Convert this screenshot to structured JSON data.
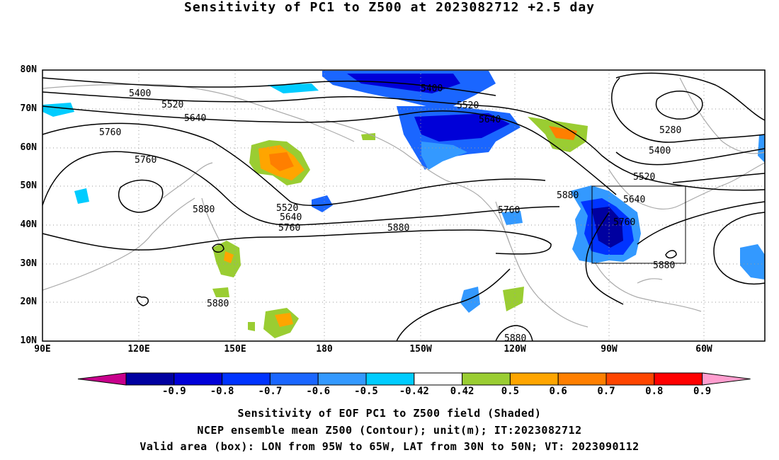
{
  "title": "Sensitivity of PC1 to Z500 at 2023082712 +2.5 day",
  "map": {
    "lat_labels": [
      "80N",
      "70N",
      "60N",
      "50N",
      "40N",
      "30N",
      "20N",
      "10N"
    ],
    "lon_labels": [
      "90E",
      "120E",
      "150E",
      "180",
      "150W",
      "120W",
      "90W",
      "60W"
    ],
    "contour_labels": [
      "5400",
      "5520",
      "5640",
      "5760",
      "5760",
      "5880",
      "5520",
      "5640",
      "5760",
      "5880",
      "5880",
      "5400",
      "5520",
      "5640",
      "5760",
      "5880",
      "5280",
      "5400",
      "5520",
      "5640",
      "5760",
      "5880",
      "5880"
    ],
    "valid_box": {
      "lon_from": "95W",
      "lon_to": "65W",
      "lat_from": "30N",
      "lat_to": "50N"
    }
  },
  "colorbar": {
    "labels": [
      "-0.9",
      "-0.8",
      "-0.7",
      "-0.6",
      "-0.5",
      "-0.42",
      "0.42",
      "0.5",
      "0.6",
      "0.7",
      "0.8",
      "0.9"
    ],
    "colors": [
      "#0000a0",
      "#0000d8",
      "#0033ff",
      "#1a66ff",
      "#3399ff",
      "#00ccff",
      "#ffffff",
      "#9acd32",
      "#ffa500",
      "#ff7f00",
      "#ff4500",
      "#ff0000"
    ],
    "left_tip_color": "#c8008c",
    "right_tip_color": "#ff9ecf"
  },
  "captions": [
    "Sensitivity of EOF PC1 to Z500 field (Shaded)",
    "NCEP ensemble mean Z500 (Contour); unit(m); IT:2023082712",
    "Valid area (box): LON from 95W to 65W, LAT from 30N to 50N; VT: 2023090112"
  ]
}
